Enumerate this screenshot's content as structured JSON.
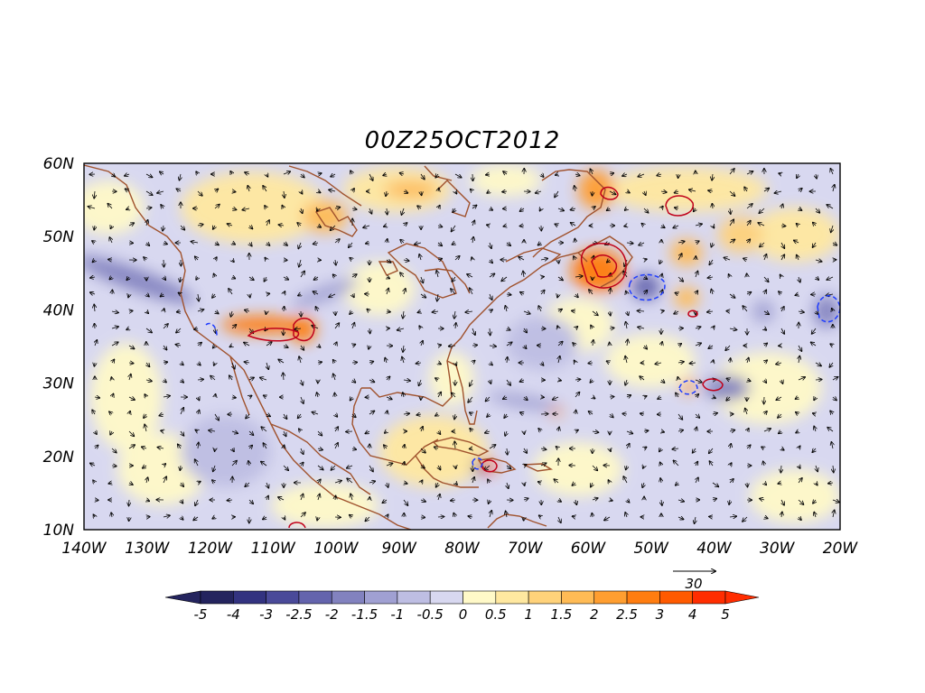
{
  "title": "00Z25OCT2012",
  "colors": {
    "background": "#ffffff",
    "frame": "#000000",
    "coastline": "#a0522d",
    "contour_positive": "#c0001a",
    "contour_negative": "#1e3cff",
    "arrow": "#000000"
  },
  "map": {
    "lon_range": [
      -140,
      -20
    ],
    "lat_range": [
      10,
      60
    ],
    "x_tick_labels": [
      "140W",
      "130W",
      "120W",
      "110W",
      "100W",
      "90W",
      "80W",
      "70W",
      "60W",
      "50W",
      "40W",
      "30W",
      "20W"
    ],
    "y_tick_labels": [
      "10N",
      "20N",
      "30N",
      "40N",
      "50N",
      "60N"
    ]
  },
  "colorbar": {
    "labels": [
      "-5",
      "-4",
      "-3",
      "-2.5",
      "-2",
      "-1.5",
      "-1",
      "-0.5",
      "0",
      "0.5",
      "1",
      "1.5",
      "2",
      "2.5",
      "3",
      "4",
      "5"
    ],
    "colors": [
      "#24245e",
      "#333380",
      "#4a4a99",
      "#6464ad",
      "#8282bf",
      "#a0a0d2",
      "#bebee3",
      "#d8d8f0",
      "#fff9c8",
      "#ffe8a0",
      "#ffd27a",
      "#ffbb55",
      "#ff9e30",
      "#ff7d10",
      "#ff5a00",
      "#ff2d00"
    ]
  },
  "reference_vector": {
    "label": "30"
  }
}
